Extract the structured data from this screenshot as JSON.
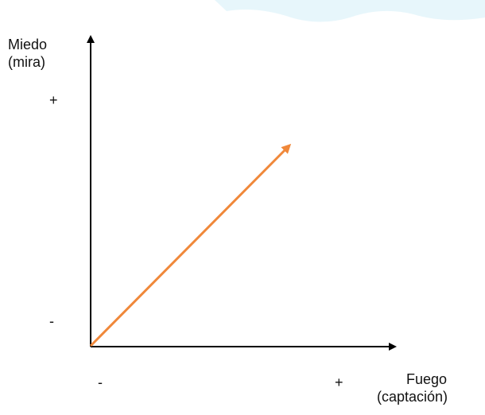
{
  "diagram": {
    "y_axis": {
      "label_line1": "Miedo",
      "label_line2": "(mira)",
      "high_mark": "+",
      "low_mark": "-"
    },
    "x_axis": {
      "label_line1": "Fuego",
      "label_line2": "(captación)",
      "low_mark": "-",
      "high_mark": "+"
    },
    "colors": {
      "axis": "#000000",
      "arrow": "#f0883a",
      "top_decoration": "#b9e6f3"
    }
  }
}
